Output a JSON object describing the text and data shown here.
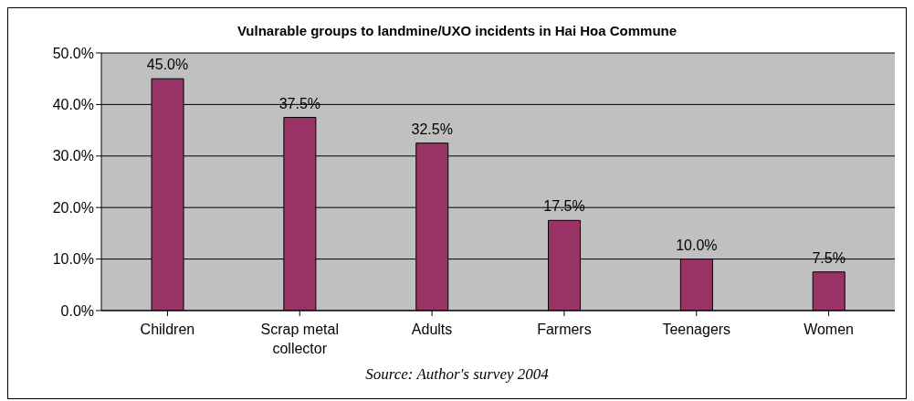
{
  "chart_data": {
    "type": "bar",
    "title": "Vulnarable groups to landmine/UXO incidents in Hai Hoa Commune",
    "categories": [
      "Children",
      "Scrap metal collector",
      "Adults",
      "Farmers",
      "Teenagers",
      "Women"
    ],
    "values": [
      45.0,
      37.5,
      32.5,
      17.5,
      10.0,
      7.5
    ],
    "value_labels": [
      "45.0%",
      "37.5%",
      "32.5%",
      "17.5%",
      "10.0%",
      "7.5%"
    ],
    "color": "#993366",
    "ylim": [
      0,
      50
    ],
    "yticks": [
      {
        "value": 0,
        "label": "0.0%"
      },
      {
        "value": 10,
        "label": "10.0%"
      },
      {
        "value": 20,
        "label": "20.0%"
      },
      {
        "value": 30,
        "label": "30.0%"
      },
      {
        "value": 40,
        "label": "40.0%"
      },
      {
        "value": 50,
        "label": "50.0%"
      }
    ],
    "grid": "y",
    "annotations": [
      "Source: Author's survey 2004"
    ]
  }
}
